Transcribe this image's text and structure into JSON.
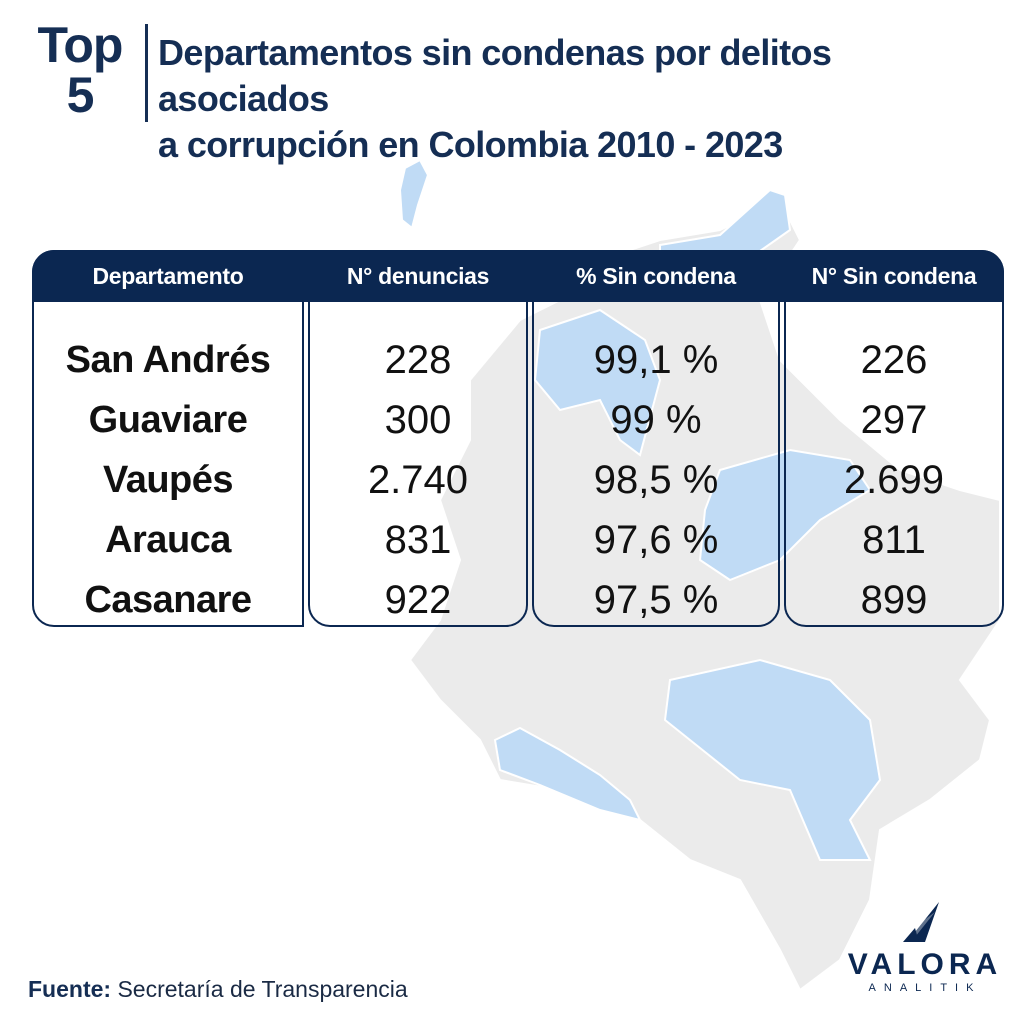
{
  "header": {
    "badge_line1": "Top",
    "badge_line2": "5",
    "title_line1": "Departamentos sin condenas por delitos asociados",
    "title_line2": "a corrupción en Colombia 2010 - 2023"
  },
  "colors": {
    "navy": "#0b2751",
    "map_gray": "#ebebeb",
    "map_highlight": "#c0dbf5"
  },
  "chart_data": {
    "type": "table",
    "columns": [
      "Departamento",
      "N° denuncias",
      "% Sin condena",
      "N° Sin condena"
    ],
    "rows": [
      [
        "San Andrés",
        "228",
        "99,1 %",
        "226"
      ],
      [
        "Guaviare",
        "300",
        "99 %",
        "297"
      ],
      [
        "Vaupés",
        "2.740",
        "98,5 %",
        "2.699"
      ],
      [
        "Arauca",
        "831",
        "97,6 %",
        "811"
      ],
      [
        "Casanare",
        "922",
        "97,5 %",
        "899"
      ]
    ]
  },
  "footer": {
    "label": "Fuente:",
    "source": "Secretaría de Transparencia"
  },
  "logo": {
    "name": "VALORA",
    "sub": "ANALITIK"
  }
}
